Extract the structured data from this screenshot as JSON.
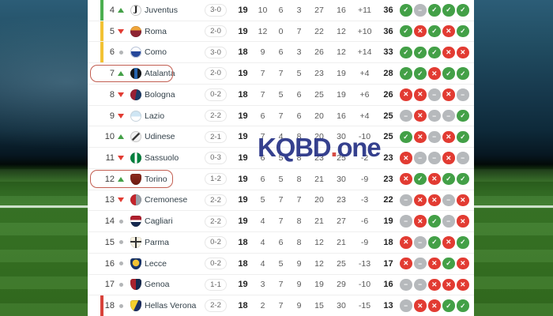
{
  "watermark": {
    "part1": "KQBD",
    "dot": ".",
    "part2": "one"
  },
  "colors": {
    "win_green": "#43a047",
    "loss_red": "#e23b32",
    "draw_gray": "#b6b9bc",
    "stripe_champions": "#4caf50",
    "stripe_europa": "#f2c234",
    "stripe_relegation": "#d8423a",
    "highlight_border": "#c25e51",
    "watermark_text": "#2b3688",
    "watermark_dot": "#d6453c"
  },
  "icons": {
    "form_win": "✓",
    "form_loss": "✕",
    "form_draw": "−"
  },
  "standings": {
    "rows": [
      {
        "pos": "4",
        "trend": "up",
        "team": "Juventus",
        "logo": "juventus",
        "last_match": "3-0",
        "played": "19",
        "wins": "10",
        "draws": "6",
        "losses": "3",
        "goals_for": "27",
        "goals_against": "16",
        "goal_diff": "+11",
        "points": "36",
        "form": [
          "w",
          "d",
          "w",
          "w",
          "w"
        ],
        "stripe": "green",
        "highlighted": false
      },
      {
        "pos": "5",
        "trend": "down",
        "team": "Roma",
        "logo": "roma",
        "last_match": "2-0",
        "played": "19",
        "wins": "12",
        "draws": "0",
        "losses": "7",
        "goals_for": "22",
        "goals_against": "12",
        "goal_diff": "+10",
        "points": "36",
        "form": [
          "w",
          "l",
          "w",
          "l",
          "w"
        ],
        "stripe": "yellow",
        "highlighted": false
      },
      {
        "pos": "6",
        "trend": "same",
        "team": "Como",
        "logo": "como",
        "last_match": "3-0",
        "played": "18",
        "wins": "9",
        "draws": "6",
        "losses": "3",
        "goals_for": "26",
        "goals_against": "12",
        "goal_diff": "+14",
        "points": "33",
        "form": [
          "w",
          "w",
          "w",
          "l",
          "l"
        ],
        "stripe": "yellow",
        "highlighted": false
      },
      {
        "pos": "7",
        "trend": "up",
        "team": "Atalanta",
        "logo": "atalanta",
        "last_match": "2-0",
        "played": "19",
        "wins": "7",
        "draws": "7",
        "losses": "5",
        "goals_for": "23",
        "goals_against": "19",
        "goal_diff": "+4",
        "points": "28",
        "form": [
          "w",
          "w",
          "l",
          "w",
          "w"
        ],
        "stripe": null,
        "highlighted": true
      },
      {
        "pos": "8",
        "trend": "down",
        "team": "Bologna",
        "logo": "bologna",
        "last_match": "0-2",
        "played": "18",
        "wins": "7",
        "draws": "5",
        "losses": "6",
        "goals_for": "25",
        "goals_against": "19",
        "goal_diff": "+6",
        "points": "26",
        "form": [
          "l",
          "l",
          "d",
          "l",
          "d"
        ],
        "stripe": null,
        "highlighted": false
      },
      {
        "pos": "9",
        "trend": "down",
        "team": "Lazio",
        "logo": "lazio",
        "last_match": "2-2",
        "played": "19",
        "wins": "6",
        "draws": "7",
        "losses": "6",
        "goals_for": "20",
        "goals_against": "16",
        "goal_diff": "+4",
        "points": "25",
        "form": [
          "d",
          "l",
          "d",
          "d",
          "w"
        ],
        "stripe": null,
        "highlighted": false
      },
      {
        "pos": "10",
        "trend": "up",
        "team": "Udinese",
        "logo": "udinese",
        "last_match": "2-1",
        "played": "19",
        "wins": "7",
        "draws": "4",
        "losses": "8",
        "goals_for": "20",
        "goals_against": "30",
        "goal_diff": "-10",
        "points": "25",
        "form": [
          "w",
          "l",
          "d",
          "l",
          "w"
        ],
        "stripe": null,
        "highlighted": false
      },
      {
        "pos": "11",
        "trend": "down",
        "team": "Sassuolo",
        "logo": "sassuolo",
        "last_match": "0-3",
        "played": "19",
        "wins": "6",
        "draws": "5",
        "losses": "8",
        "goals_for": "23",
        "goals_against": "25",
        "goal_diff": "-2",
        "points": "23",
        "form": [
          "l",
          "d",
          "d",
          "l",
          "d"
        ],
        "stripe": null,
        "highlighted": false
      },
      {
        "pos": "12",
        "trend": "up",
        "team": "Torino",
        "logo": "torino",
        "last_match": "1-2",
        "played": "19",
        "wins": "6",
        "draws": "5",
        "losses": "8",
        "goals_for": "21",
        "goals_against": "30",
        "goal_diff": "-9",
        "points": "23",
        "form": [
          "l",
          "w",
          "l",
          "w",
          "w"
        ],
        "stripe": null,
        "highlighted": true
      },
      {
        "pos": "13",
        "trend": "down",
        "team": "Cremonese",
        "logo": "cremonese",
        "last_match": "2-2",
        "played": "19",
        "wins": "5",
        "draws": "7",
        "losses": "7",
        "goals_for": "20",
        "goals_against": "23",
        "goal_diff": "-3",
        "points": "22",
        "form": [
          "d",
          "l",
          "l",
          "d",
          "l"
        ],
        "stripe": null,
        "highlighted": false
      },
      {
        "pos": "14",
        "trend": "same",
        "team": "Cagliari",
        "logo": "cagliari",
        "last_match": "2-2",
        "played": "19",
        "wins": "4",
        "draws": "7",
        "losses": "8",
        "goals_for": "21",
        "goals_against": "27",
        "goal_diff": "-6",
        "points": "19",
        "form": [
          "d",
          "l",
          "w",
          "d",
          "l"
        ],
        "stripe": null,
        "highlighted": false
      },
      {
        "pos": "15",
        "trend": "same",
        "team": "Parma",
        "logo": "parma",
        "last_match": "0-2",
        "played": "18",
        "wins": "4",
        "draws": "6",
        "losses": "8",
        "goals_for": "12",
        "goals_against": "21",
        "goal_diff": "-9",
        "points": "18",
        "form": [
          "l",
          "d",
          "w",
          "l",
          "w"
        ],
        "stripe": null,
        "highlighted": false
      },
      {
        "pos": "16",
        "trend": "same",
        "team": "Lecce",
        "logo": "lecce",
        "last_match": "0-2",
        "played": "18",
        "wins": "4",
        "draws": "5",
        "losses": "9",
        "goals_for": "12",
        "goals_against": "25",
        "goal_diff": "-13",
        "points": "17",
        "form": [
          "l",
          "d",
          "l",
          "w",
          "l"
        ],
        "stripe": null,
        "highlighted": false
      },
      {
        "pos": "17",
        "trend": "same",
        "team": "Genoa",
        "logo": "genoa",
        "last_match": "1-1",
        "played": "19",
        "wins": "3",
        "draws": "7",
        "losses": "9",
        "goals_for": "19",
        "goals_against": "29",
        "goal_diff": "-10",
        "points": "16",
        "form": [
          "d",
          "d",
          "l",
          "l",
          "l"
        ],
        "stripe": null,
        "highlighted": false
      },
      {
        "pos": "18",
        "trend": "same",
        "team": "Hellas Verona",
        "logo": "verona",
        "last_match": "2-2",
        "played": "18",
        "wins": "2",
        "draws": "7",
        "losses": "9",
        "goals_for": "15",
        "goals_against": "30",
        "goal_diff": "-15",
        "points": "13",
        "form": [
          "d",
          "l",
          "l",
          "w",
          "w"
        ],
        "stripe": "red",
        "highlighted": false
      }
    ]
  }
}
